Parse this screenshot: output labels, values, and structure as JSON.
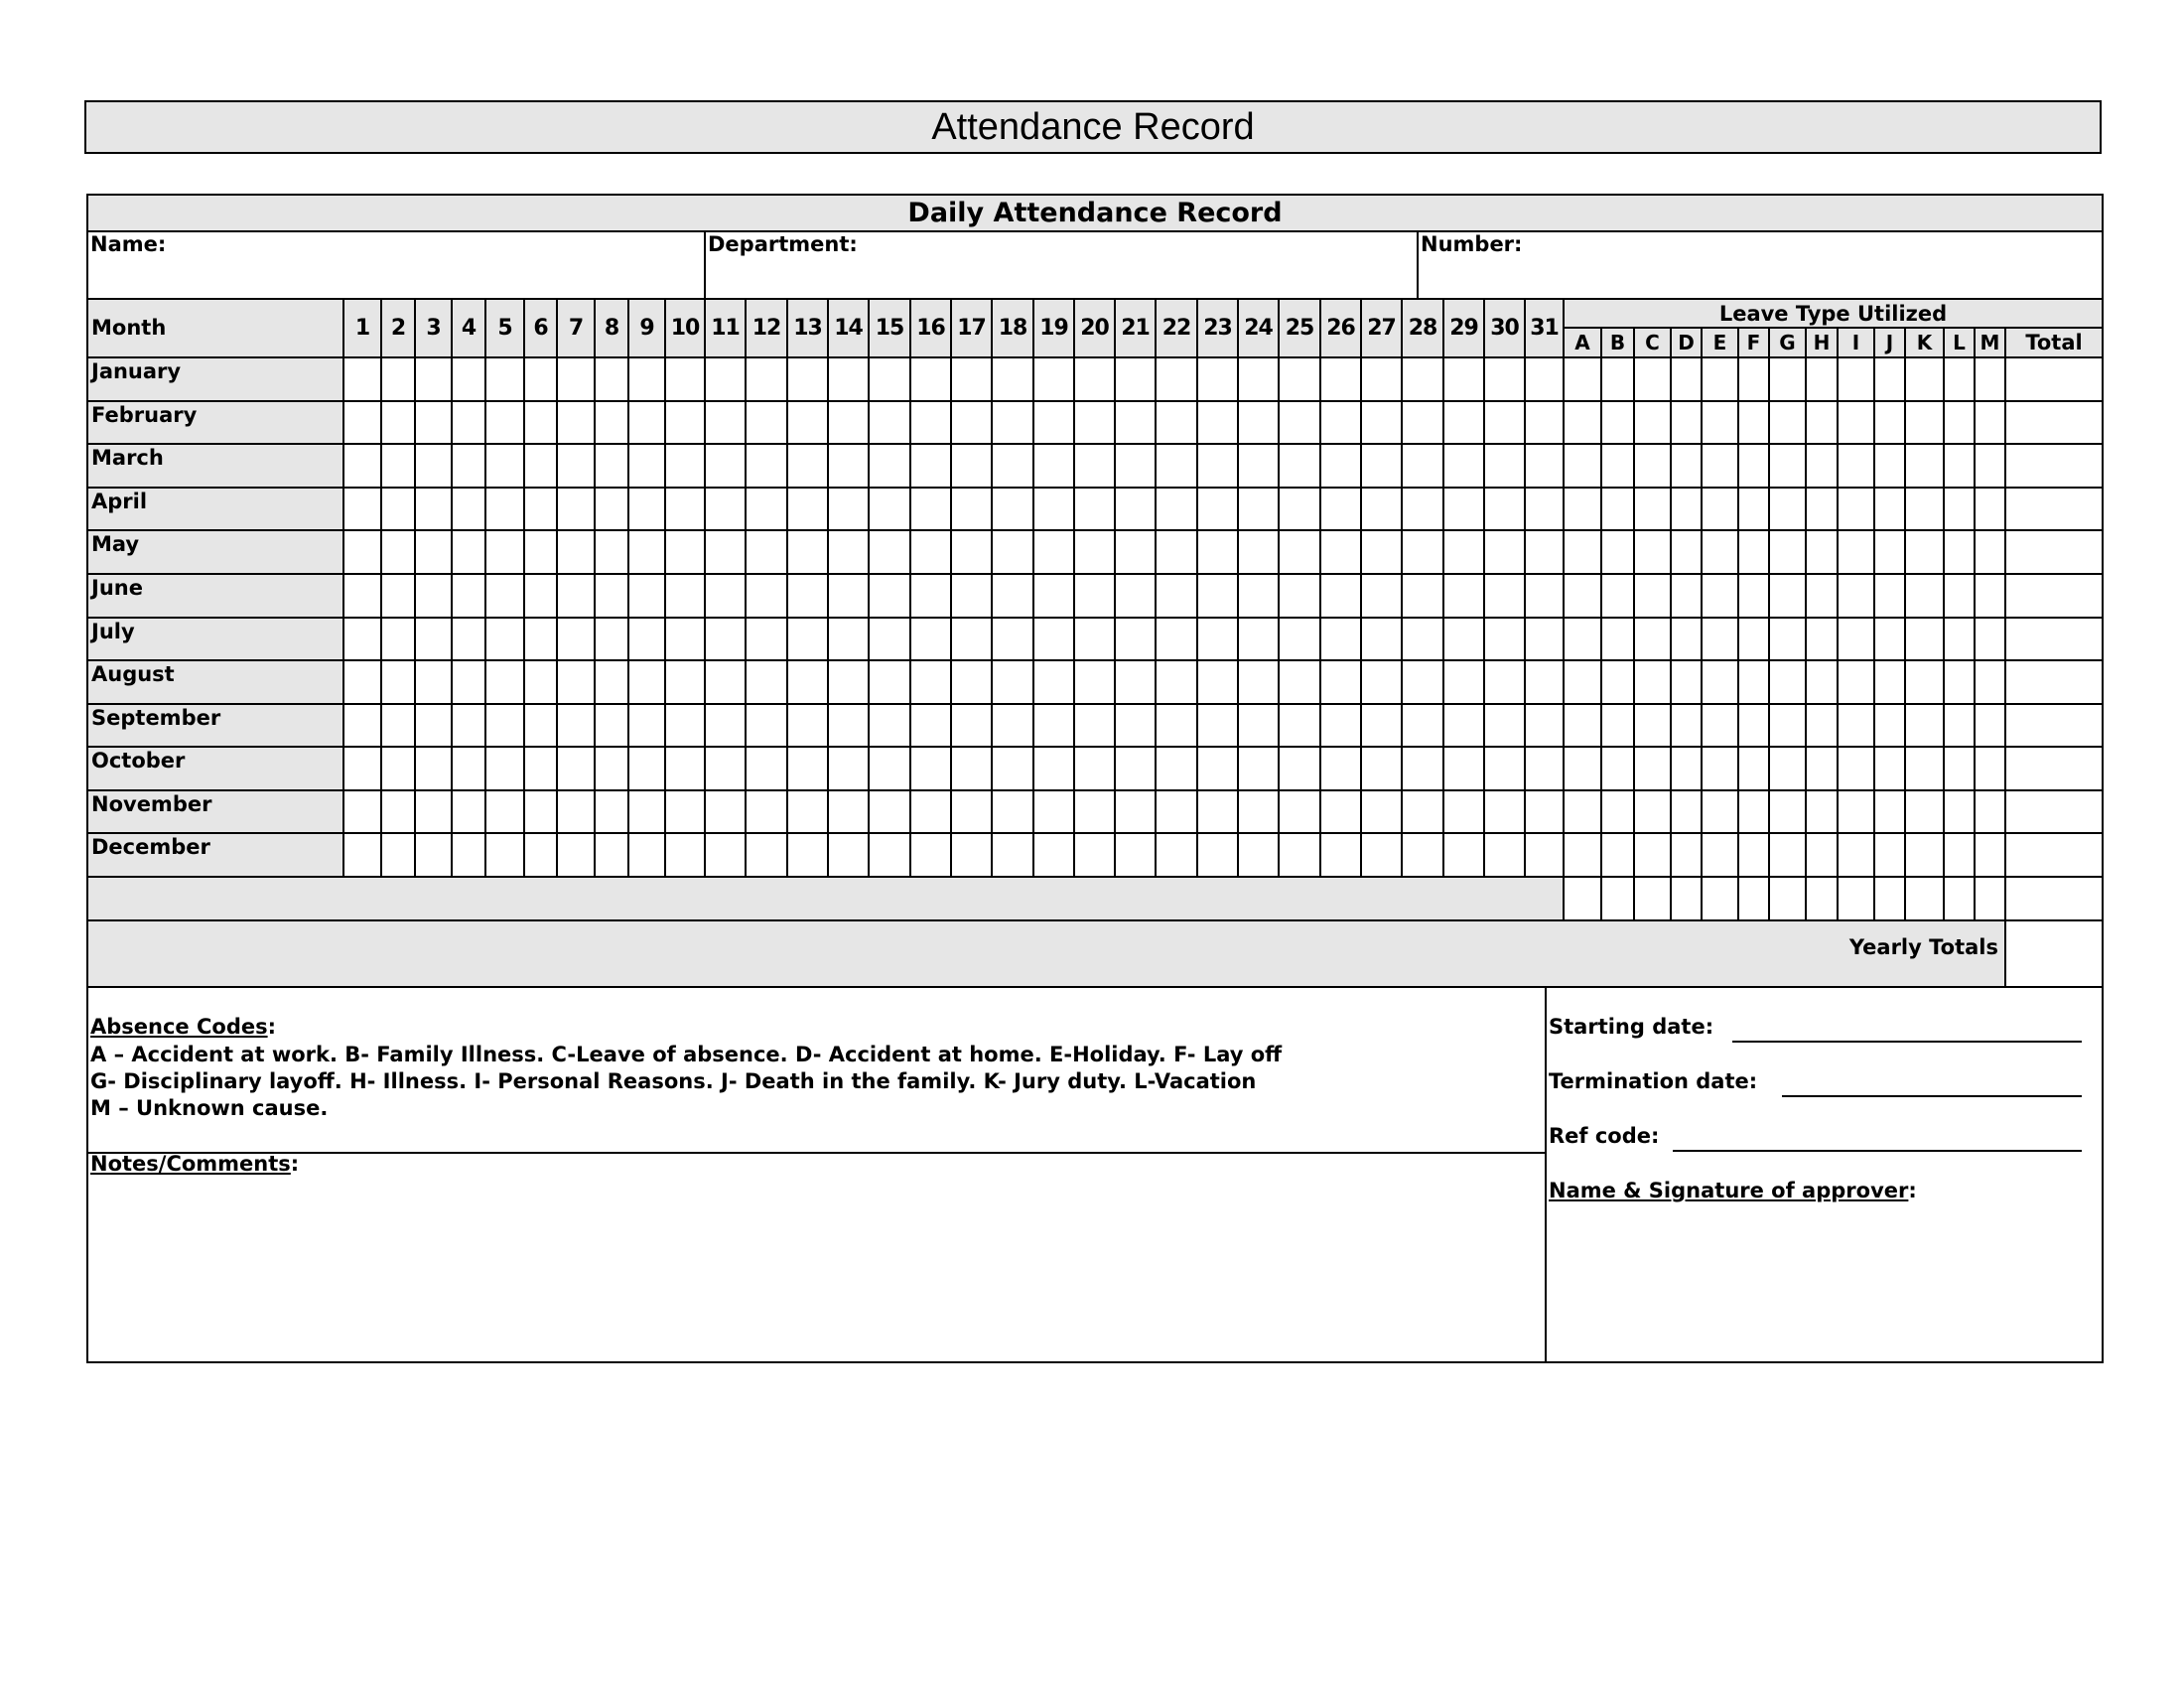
{
  "title": "Attendance Record",
  "form": {
    "header": "Daily Attendance Record",
    "name_label": "Name:",
    "department_label": "Department:",
    "number_label": "Number:",
    "month_header": "Month",
    "days": [
      "1",
      "2",
      "3",
      "4",
      "5",
      "6",
      "7",
      "8",
      "9",
      "10",
      "11",
      "12",
      "13",
      "14",
      "15",
      "16",
      "17",
      "18",
      "19",
      "20",
      "21",
      "22",
      "23",
      "24",
      "25",
      "26",
      "27",
      "28",
      "29",
      "30",
      "31"
    ],
    "leave_title": "Leave Type Utilized",
    "leave_codes": [
      "A",
      "B",
      "C",
      "D",
      "E",
      "F",
      "G",
      "H",
      "I",
      "J",
      "K",
      "L",
      "M"
    ],
    "total_label": "Total",
    "months": [
      "January",
      "February",
      "March",
      "April",
      "May",
      "June",
      "July",
      "August",
      "September",
      "October",
      "November",
      "December"
    ],
    "yearly_totals_label": "Yearly Totals"
  },
  "absence": {
    "heading": "Absence Codes",
    "lines": [
      "A – Accident at work.   B- Family Illness. C-Leave of absence.  D- Accident at home. E-Holiday.  F- Lay off",
      "G- Disciplinary layoff.  H- Illness.  I- Personal Reasons. J- Death in the family.  K- Jury duty.  L-Vacation",
      "M – Unknown cause."
    ]
  },
  "notes": {
    "heading": "Notes/Comments"
  },
  "right_fields": {
    "starting_date": "Starting date:",
    "termination_date": "Termination date:",
    "ref_code": "Ref code:",
    "approver": "Name & Signature of approver"
  }
}
